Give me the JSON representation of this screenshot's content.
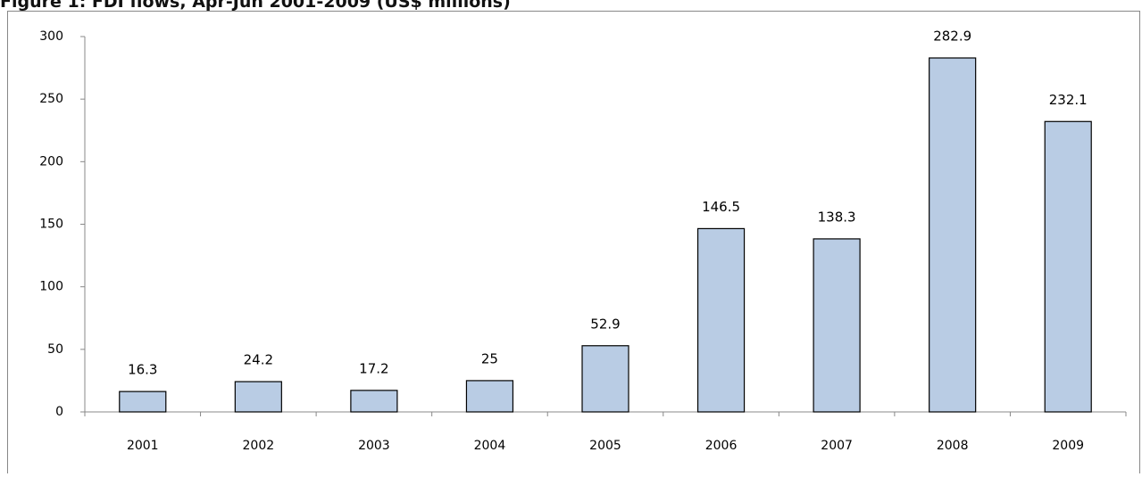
{
  "chart_data": {
    "type": "bar",
    "title": "Figure 1: FDI flows, Apr-Jun 2001-2009 (US$ millions)",
    "categories": [
      "2001",
      "2002",
      "2003",
      "2004",
      "2005",
      "2006",
      "2007",
      "2008",
      "2009"
    ],
    "values": [
      16.3,
      24.2,
      17.2,
      25,
      52.9,
      146.5,
      138.3,
      282.9,
      232.1
    ],
    "color": "#b9cce4",
    "ylim": [
      0,
      300
    ],
    "yticks": [
      0,
      50,
      100,
      150,
      200,
      250,
      300
    ],
    "grid": false
  }
}
